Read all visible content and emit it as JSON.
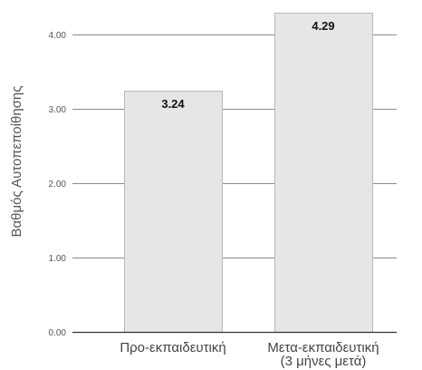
{
  "chart_data": {
    "type": "bar",
    "categories": [
      [
        "Προ-εκπαιδευτική"
      ],
      [
        "Μετα-εκπαιδευτική",
        "(3 μήνες μετά)"
      ]
    ],
    "values": [
      3.24,
      4.29
    ],
    "data_labels": [
      "3.24",
      "4.29"
    ],
    "title": "",
    "xlabel": "",
    "ylabel": "Βαθμός Αυτοπεποίθησης",
    "ylim": [
      0,
      4.29
    ],
    "yticks": [
      0,
      1,
      2,
      3,
      4
    ],
    "ytick_labels": [
      "0.00",
      "1.00",
      "2.00",
      "3.00",
      "4.00"
    ],
    "grid": true,
    "legend": "none",
    "colors": {
      "bar_fill": "#e6e6e6",
      "bar_stroke": "#b8b8b8",
      "grid": "#8c8c8c",
      "baseline": "#333333"
    }
  }
}
